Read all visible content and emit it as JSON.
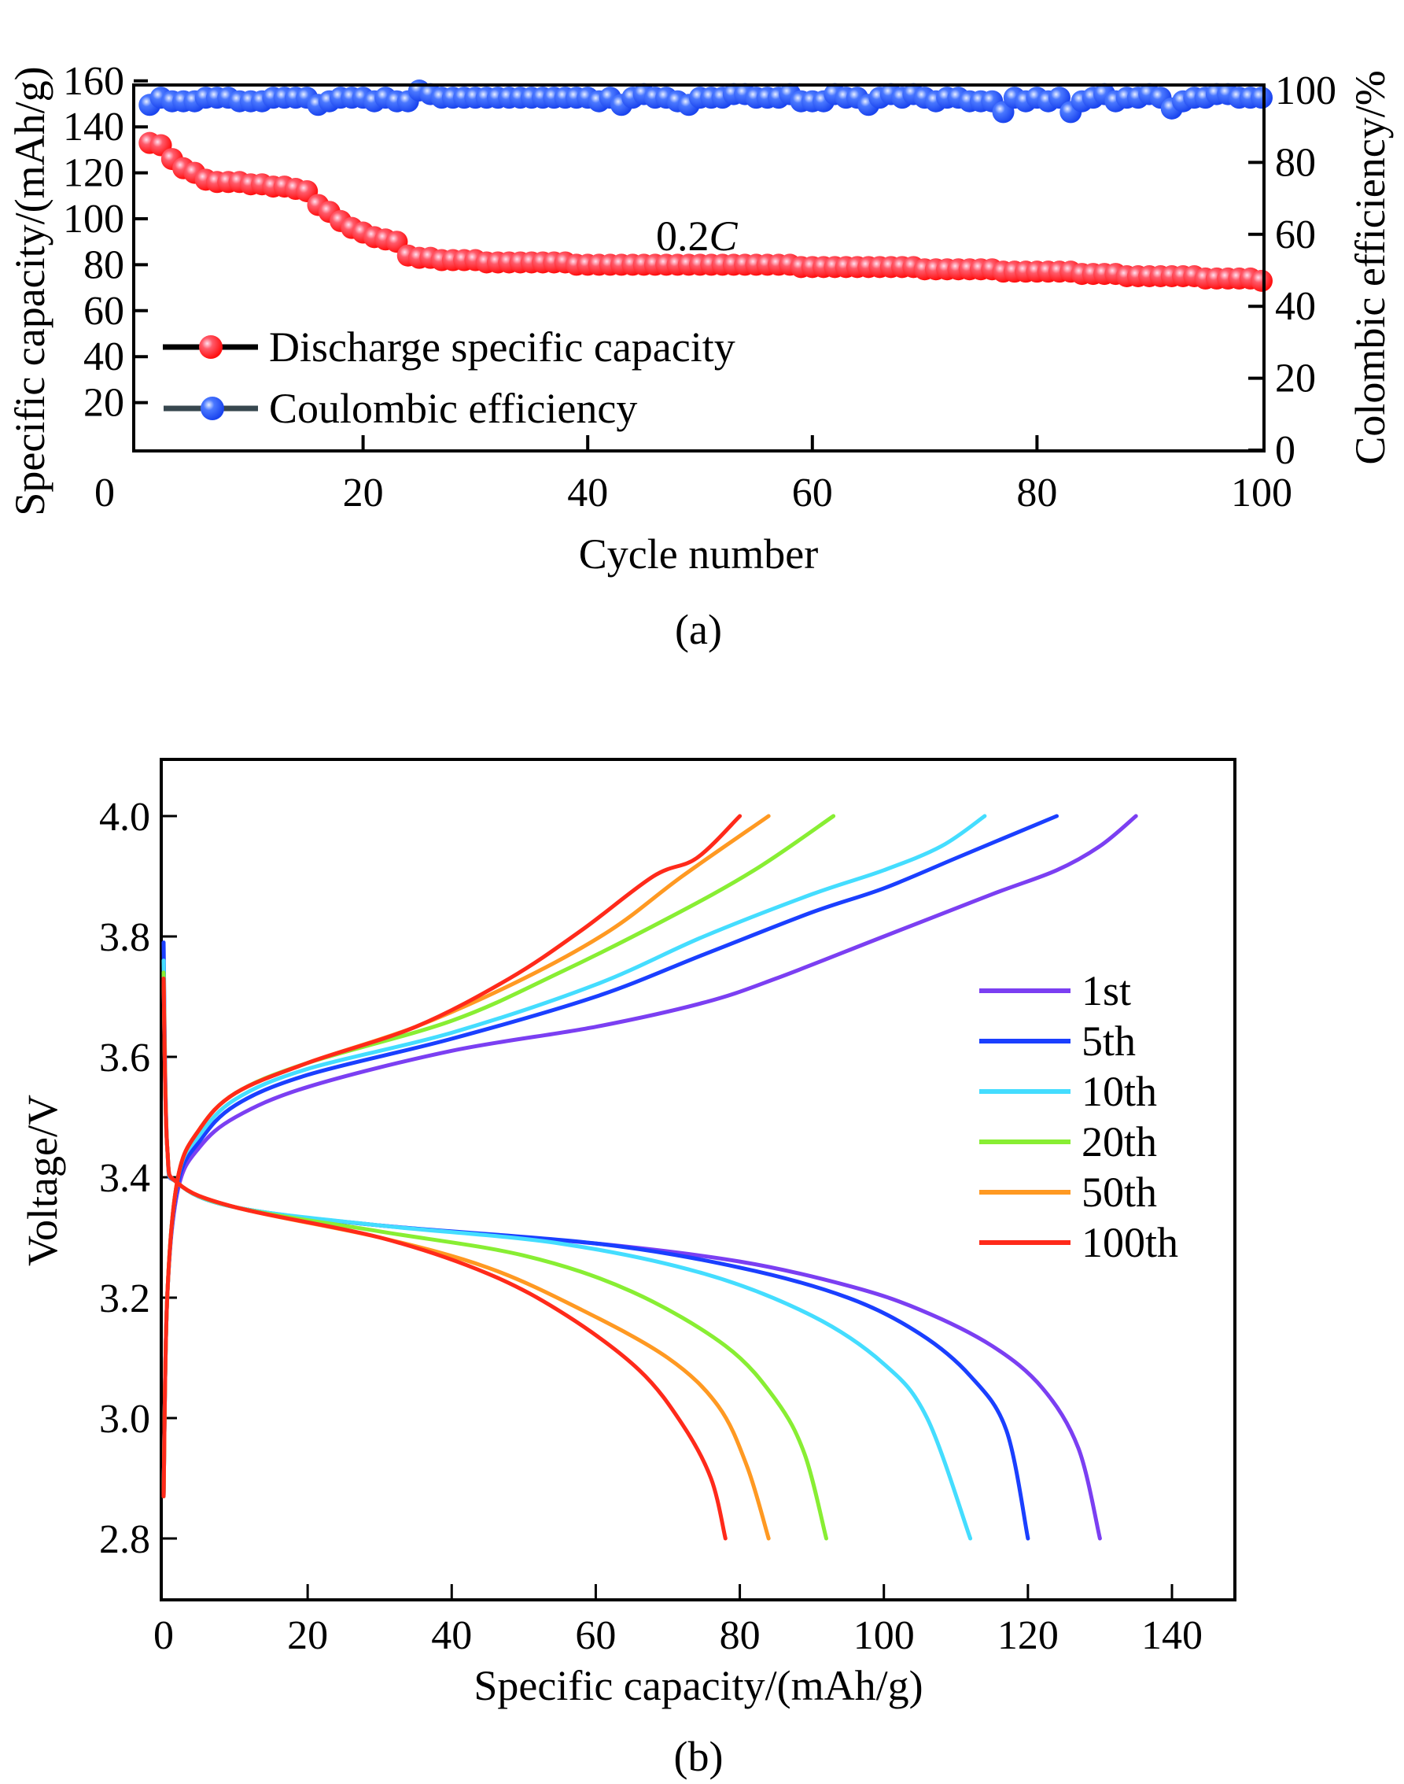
{
  "chart_data": [
    {
      "id": "a",
      "type": "scatter",
      "panel_label": "(a)",
      "title": "",
      "xlabel": "Cycle number",
      "ylabel": "Specific capacity/(mAh/g)",
      "y2label": "Colombic efficiency/%",
      "annotation": "0.2C",
      "xlim": [
        0,
        100
      ],
      "ylim": [
        0,
        170
      ],
      "y2lim": [
        0,
        107
      ],
      "xticks": [
        "0",
        "20",
        "40",
        "60",
        "80",
        "100"
      ],
      "yticks": [
        "20",
        "40",
        "60",
        "80",
        "100",
        "120",
        "140",
        "160"
      ],
      "y2ticks": [
        "0",
        "20",
        "40",
        "60",
        "80",
        "100"
      ],
      "legend_position": "bottom-left",
      "series": [
        {
          "name": "Discharge specific capacity",
          "axis": "left",
          "color": "#ff1a1a",
          "line_color": "#000000",
          "x": [
            1,
            2,
            3,
            4,
            5,
            6,
            7,
            8,
            9,
            10,
            11,
            12,
            13,
            14,
            15,
            16,
            17,
            18,
            19,
            20,
            21,
            22,
            23,
            24,
            25,
            26,
            27,
            28,
            29,
            30,
            31,
            32,
            33,
            34,
            35,
            36,
            37,
            38,
            39,
            40,
            41,
            42,
            43,
            44,
            45,
            46,
            47,
            48,
            49,
            50,
            51,
            52,
            53,
            54,
            55,
            56,
            57,
            58,
            59,
            60,
            61,
            62,
            63,
            64,
            65,
            66,
            67,
            68,
            69,
            70,
            71,
            72,
            73,
            74,
            75,
            76,
            77,
            78,
            79,
            80,
            81,
            82,
            83,
            84,
            85,
            86,
            87,
            88,
            89,
            90,
            91,
            92,
            93,
            94,
            95,
            96,
            97,
            98,
            99,
            100
          ],
          "values": [
            133,
            132,
            126,
            122,
            120,
            117,
            116,
            116,
            116,
            115,
            115,
            114,
            114,
            113,
            112,
            106,
            103,
            99,
            96,
            94,
            92,
            91,
            90,
            84,
            83,
            83,
            82,
            82,
            82,
            82,
            81,
            81,
            81,
            81,
            81,
            81,
            81,
            81,
            80,
            80,
            80,
            80,
            80,
            80,
            80,
            80,
            80,
            80,
            80,
            80,
            80,
            80,
            80,
            80,
            80,
            80,
            80,
            80,
            79,
            79,
            79,
            79,
            79,
            79,
            79,
            79,
            79,
            79,
            79,
            78,
            78,
            78,
            78,
            78,
            78,
            78,
            77,
            77,
            77,
            77,
            77,
            77,
            77,
            76,
            76,
            76,
            76,
            75,
            75,
            75,
            75,
            75,
            75,
            75,
            74,
            74,
            74,
            74,
            74,
            73
          ]
        },
        {
          "name": "Coulombic efficiency",
          "axis": "right",
          "color": "#1f4fff",
          "line_color": "#37474f",
          "x": [
            1,
            2,
            3,
            4,
            5,
            6,
            7,
            8,
            9,
            10,
            11,
            12,
            13,
            14,
            15,
            16,
            17,
            18,
            19,
            20,
            21,
            22,
            23,
            24,
            25,
            26,
            27,
            28,
            29,
            30,
            31,
            32,
            33,
            34,
            35,
            36,
            37,
            38,
            39,
            40,
            41,
            42,
            43,
            44,
            45,
            46,
            47,
            48,
            49,
            50,
            51,
            52,
            53,
            54,
            55,
            56,
            57,
            58,
            59,
            60,
            61,
            62,
            63,
            64,
            65,
            66,
            67,
            68,
            69,
            70,
            71,
            72,
            73,
            74,
            75,
            76,
            77,
            78,
            79,
            80,
            81,
            82,
            83,
            84,
            85,
            86,
            87,
            88,
            89,
            90,
            91,
            92,
            93,
            94,
            95,
            96,
            97,
            98,
            99,
            100
          ],
          "values": [
            96,
            98,
            97,
            97,
            97,
            98,
            98,
            98,
            97,
            97,
            97,
            98,
            98,
            98,
            98,
            96,
            97,
            98,
            98,
            98,
            97,
            98,
            97,
            97,
            100,
            99,
            98,
            98,
            98,
            98,
            98,
            98,
            98,
            98,
            98,
            98,
            98,
            98,
            98,
            98,
            97,
            98,
            96,
            98,
            99,
            98,
            98,
            97,
            96,
            98,
            98,
            98,
            99,
            99,
            98,
            98,
            98,
            99,
            97,
            97,
            97,
            99,
            98,
            98,
            96,
            98,
            99,
            98,
            99,
            98,
            97,
            98,
            98,
            97,
            97,
            97,
            94,
            98,
            97,
            98,
            97,
            98,
            94,
            97,
            98,
            99,
            97,
            98,
            98,
            99,
            98,
            95,
            97,
            98,
            98,
            99,
            99,
            98,
            98,
            98
          ]
        }
      ]
    },
    {
      "id": "b",
      "type": "line",
      "panel_label": "(b)",
      "title": "",
      "xlabel": "Specific capacity/(mAh/g)",
      "ylabel": "Voltage/V",
      "xlim": [
        0,
        152
      ],
      "ylim": [
        2.72,
        4.13
      ],
      "xticks": [
        "0",
        "20",
        "40",
        "60",
        "80",
        "100",
        "120",
        "140"
      ],
      "yticks": [
        "2.8",
        "3.0",
        "3.2",
        "3.4",
        "3.6",
        "3.8",
        "4.0"
      ],
      "legend_position": "right",
      "series": [
        {
          "name": "1st",
          "color": "#7b3ff2",
          "charge": [
            [
              0,
              2.87
            ],
            [
              0.5,
              3.2
            ],
            [
              2,
              3.38
            ],
            [
              5,
              3.45
            ],
            [
              10,
              3.5
            ],
            [
              20,
              3.55
            ],
            [
              40,
              3.61
            ],
            [
              60,
              3.65
            ],
            [
              75,
              3.69
            ],
            [
              85,
              3.73
            ],
            [
              100,
              3.8
            ],
            [
              115,
              3.87
            ],
            [
              124,
              3.91
            ],
            [
              130,
              3.95
            ],
            [
              135,
              4.0
            ]
          ],
          "discharge": [
            [
              0,
              3.73
            ],
            [
              0.5,
              3.45
            ],
            [
              2,
              3.39
            ],
            [
              10,
              3.35
            ],
            [
              30,
              3.32
            ],
            [
              60,
              3.29
            ],
            [
              80,
              3.26
            ],
            [
              95,
              3.22
            ],
            [
              105,
              3.18
            ],
            [
              115,
              3.12
            ],
            [
              122,
              3.05
            ],
            [
              127,
              2.95
            ],
            [
              130,
              2.8
            ]
          ]
        },
        {
          "name": "5th",
          "color": "#1a3fff",
          "charge": [
            [
              0,
              2.87
            ],
            [
              0.5,
              3.2
            ],
            [
              2,
              3.39
            ],
            [
              5,
              3.46
            ],
            [
              10,
              3.52
            ],
            [
              20,
              3.57
            ],
            [
              40,
              3.63
            ],
            [
              60,
              3.7
            ],
            [
              75,
              3.77
            ],
            [
              90,
              3.84
            ],
            [
              100,
              3.88
            ],
            [
              110,
              3.93
            ],
            [
              118,
              3.97
            ],
            [
              124,
              4.0
            ]
          ],
          "discharge": [
            [
              0,
              3.79
            ],
            [
              0.5,
              3.45
            ],
            [
              2,
              3.39
            ],
            [
              10,
              3.35
            ],
            [
              30,
              3.32
            ],
            [
              60,
              3.29
            ],
            [
              80,
              3.25
            ],
            [
              95,
              3.2
            ],
            [
              105,
              3.14
            ],
            [
              112,
              3.07
            ],
            [
              117,
              2.98
            ],
            [
              120,
              2.8
            ]
          ]
        },
        {
          "name": "10th",
          "color": "#44ddff",
          "charge": [
            [
              0,
              2.87
            ],
            [
              0.5,
              3.2
            ],
            [
              2,
              3.4
            ],
            [
              5,
              3.47
            ],
            [
              10,
              3.53
            ],
            [
              20,
              3.58
            ],
            [
              40,
              3.64
            ],
            [
              60,
              3.72
            ],
            [
              75,
              3.8
            ],
            [
              90,
              3.87
            ],
            [
              100,
              3.91
            ],
            [
              108,
              3.95
            ],
            [
              114,
              4.0
            ]
          ],
          "discharge": [
            [
              0,
              3.76
            ],
            [
              0.5,
              3.45
            ],
            [
              2,
              3.39
            ],
            [
              10,
              3.35
            ],
            [
              30,
              3.32
            ],
            [
              55,
              3.29
            ],
            [
              75,
              3.24
            ],
            [
              90,
              3.17
            ],
            [
              100,
              3.09
            ],
            [
              106,
              3.0
            ],
            [
              112,
              2.8
            ]
          ]
        },
        {
          "name": "20th",
          "color": "#88ee33",
          "charge": [
            [
              0,
              2.87
            ],
            [
              0.5,
              3.2
            ],
            [
              2,
              3.4
            ],
            [
              5,
              3.48
            ],
            [
              10,
              3.54
            ],
            [
              20,
              3.59
            ],
            [
              40,
              3.66
            ],
            [
              55,
              3.74
            ],
            [
              70,
              3.83
            ],
            [
              82,
              3.91
            ],
            [
              93,
              4.0
            ]
          ],
          "discharge": [
            [
              0,
              3.74
            ],
            [
              0.5,
              3.45
            ],
            [
              2,
              3.39
            ],
            [
              10,
              3.35
            ],
            [
              30,
              3.31
            ],
            [
              50,
              3.27
            ],
            [
              65,
              3.21
            ],
            [
              78,
              3.12
            ],
            [
              85,
              3.03
            ],
            [
              89,
              2.94
            ],
            [
              92,
              2.8
            ]
          ]
        },
        {
          "name": "50th",
          "color": "#ff9922",
          "charge": [
            [
              0,
              2.87
            ],
            [
              0.5,
              3.2
            ],
            [
              2,
              3.4
            ],
            [
              5,
              3.48
            ],
            [
              10,
              3.54
            ],
            [
              20,
              3.59
            ],
            [
              35,
              3.65
            ],
            [
              50,
              3.73
            ],
            [
              62,
              3.81
            ],
            [
              72,
              3.9
            ],
            [
              84,
              4.0
            ]
          ],
          "discharge": [
            [
              0,
              3.73
            ],
            [
              0.5,
              3.45
            ],
            [
              2,
              3.39
            ],
            [
              10,
              3.35
            ],
            [
              30,
              3.3
            ],
            [
              45,
              3.25
            ],
            [
              58,
              3.18
            ],
            [
              70,
              3.1
            ],
            [
              77,
              3.02
            ],
            [
              81,
              2.92
            ],
            [
              84,
              2.8
            ]
          ]
        },
        {
          "name": "100th",
          "color": "#ff2a1a",
          "charge": [
            [
              0,
              2.87
            ],
            [
              0.5,
              3.2
            ],
            [
              2,
              3.4
            ],
            [
              5,
              3.48
            ],
            [
              10,
              3.54
            ],
            [
              20,
              3.59
            ],
            [
              35,
              3.65
            ],
            [
              48,
              3.73
            ],
            [
              58,
              3.81
            ],
            [
              68,
              3.9
            ],
            [
              74,
              3.93
            ],
            [
              80,
              4.0
            ]
          ],
          "discharge": [
            [
              0,
              3.73
            ],
            [
              0.5,
              3.45
            ],
            [
              2,
              3.39
            ],
            [
              10,
              3.35
            ],
            [
              30,
              3.3
            ],
            [
              45,
              3.24
            ],
            [
              56,
              3.17
            ],
            [
              66,
              3.08
            ],
            [
              72,
              2.99
            ],
            [
              76,
              2.9
            ],
            [
              78,
              2.8
            ]
          ]
        }
      ]
    }
  ]
}
